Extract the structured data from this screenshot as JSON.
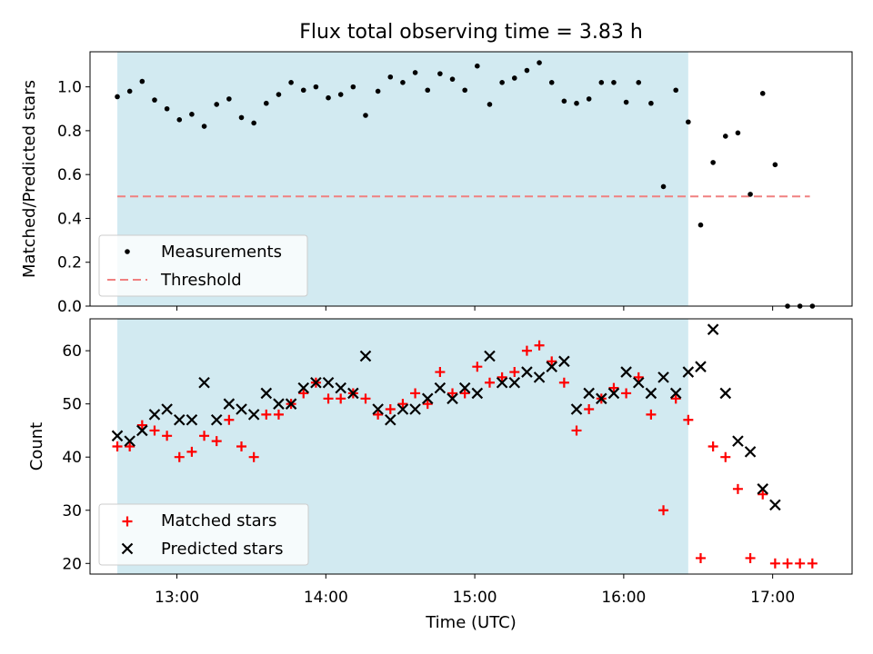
{
  "chart_data": [
    {
      "type": "scatter",
      "title": "Flux total observing time = 3.83 h",
      "xlabel": "",
      "ylabel": "Matched/Predicted stars",
      "xlim": [
        "12:25",
        "17:32"
      ],
      "ylim": [
        0.0,
        1.16
      ],
      "yticks": [
        "0.0",
        "0.2",
        "0.4",
        "0.6",
        "0.8",
        "1.0"
      ],
      "observing_window": [
        "12:36",
        "16:26"
      ],
      "legend_position": "lower-left",
      "legend": [
        "Measurements",
        "Threshold"
      ],
      "threshold": {
        "name": "Threshold",
        "y": 0.5,
        "x": [
          "12:36",
          "17:15"
        ],
        "color": "#f08080",
        "style": "dashed"
      },
      "series": [
        {
          "name": "Measurements",
          "color": "#000000",
          "marker": "dot",
          "x": [
            "12:36",
            "12:41",
            "12:46",
            "12:51",
            "12:56",
            "13:01",
            "13:06",
            "13:11",
            "13:16",
            "13:21",
            "13:26",
            "13:31",
            "13:36",
            "13:41",
            "13:46",
            "13:51",
            "13:56",
            "14:01",
            "14:06",
            "14:11",
            "14:16",
            "14:21",
            "14:26",
            "14:31",
            "14:36",
            "14:41",
            "14:46",
            "14:51",
            "14:56",
            "15:01",
            "15:06",
            "15:11",
            "15:16",
            "15:21",
            "15:26",
            "15:31",
            "15:36",
            "15:41",
            "15:46",
            "15:51",
            "15:56",
            "16:01",
            "16:06",
            "16:11",
            "16:16",
            "16:21",
            "16:26",
            "16:31",
            "16:36",
            "16:41",
            "16:46",
            "16:51",
            "16:56",
            "17:01",
            "17:06",
            "17:11",
            "17:16"
          ],
          "y": [
            0.955,
            0.98,
            1.025,
            0.94,
            0.9,
            0.85,
            0.875,
            0.82,
            0.92,
            0.945,
            0.86,
            0.835,
            0.925,
            0.965,
            1.02,
            0.985,
            1.0,
            0.95,
            0.965,
            1.0,
            0.87,
            0.98,
            1.045,
            1.02,
            1.065,
            0.985,
            1.06,
            1.035,
            0.985,
            1.095,
            0.92,
            1.02,
            1.04,
            1.075,
            1.11,
            1.02,
            0.935,
            0.925,
            0.945,
            1.02,
            1.02,
            0.93,
            1.02,
            0.925,
            0.545,
            0.985,
            0.84,
            0.37,
            0.655,
            0.775,
            0.79,
            0.51,
            0.97,
            0.645,
            0.0,
            0.0,
            0.0
          ]
        }
      ]
    },
    {
      "type": "scatter",
      "title": "",
      "xlabel": "Time (UTC)",
      "ylabel": "Count",
      "xlim": [
        "12:25",
        "17:32"
      ],
      "xticks": [
        "13:00",
        "14:00",
        "15:00",
        "16:00",
        "17:00"
      ],
      "ylim": [
        18,
        66
      ],
      "yticks": [
        "20",
        "30",
        "40",
        "50",
        "60"
      ],
      "observing_window": [
        "12:36",
        "16:26"
      ],
      "legend_position": "lower-left",
      "legend": [
        "Matched stars",
        "Predicted stars"
      ],
      "series": [
        {
          "name": "Matched stars",
          "color": "#ff0000",
          "marker": "plus",
          "x": [
            "12:36",
            "12:41",
            "12:46",
            "12:51",
            "12:56",
            "13:01",
            "13:06",
            "13:11",
            "13:16",
            "13:21",
            "13:26",
            "13:31",
            "13:36",
            "13:41",
            "13:46",
            "13:51",
            "13:56",
            "14:01",
            "14:06",
            "14:11",
            "14:16",
            "14:21",
            "14:26",
            "14:31",
            "14:36",
            "14:41",
            "14:46",
            "14:51",
            "14:56",
            "15:01",
            "15:06",
            "15:11",
            "15:16",
            "15:21",
            "15:26",
            "15:31",
            "15:36",
            "15:41",
            "15:46",
            "15:51",
            "15:56",
            "16:01",
            "16:06",
            "16:11",
            "16:16",
            "16:21",
            "16:26",
            "16:31",
            "16:36",
            "16:41",
            "16:46",
            "16:51",
            "16:56",
            "17:01",
            "17:06",
            "17:11",
            "17:16"
          ],
          "y": [
            42,
            42,
            46,
            45,
            44,
            40,
            41,
            44,
            43,
            47,
            42,
            40,
            48,
            48,
            50,
            52,
            54,
            51,
            51,
            52,
            51,
            48,
            49,
            50,
            52,
            50,
            56,
            52,
            52,
            57,
            54,
            55,
            56,
            60,
            61,
            58,
            54,
            45,
            49,
            51,
            53,
            52,
            55,
            48,
            30,
            51,
            47,
            21,
            42,
            40,
            34,
            21,
            33,
            20,
            20,
            20,
            20
          ]
        },
        {
          "name": "Predicted stars",
          "color": "#000000",
          "marker": "cross",
          "x": [
            "12:36",
            "12:41",
            "12:46",
            "12:51",
            "12:56",
            "13:01",
            "13:06",
            "13:11",
            "13:16",
            "13:21",
            "13:26",
            "13:31",
            "13:36",
            "13:41",
            "13:46",
            "13:51",
            "13:56",
            "14:01",
            "14:06",
            "14:11",
            "14:16",
            "14:21",
            "14:26",
            "14:31",
            "14:36",
            "14:41",
            "14:46",
            "14:51",
            "14:56",
            "15:01",
            "15:06",
            "15:11",
            "15:16",
            "15:21",
            "15:26",
            "15:31",
            "15:36",
            "15:41",
            "15:46",
            "15:51",
            "15:56",
            "16:01",
            "16:06",
            "16:11",
            "16:16",
            "16:21",
            "16:26",
            "16:31",
            "16:36",
            "16:41",
            "16:46",
            "16:51",
            "16:56",
            "17:01"
          ],
          "y": [
            44,
            43,
            45,
            48,
            49,
            47,
            47,
            54,
            47,
            50,
            49,
            48,
            52,
            50,
            50,
            53,
            54,
            54,
            53,
            52,
            59,
            49,
            47,
            49,
            49,
            51,
            53,
            51,
            53,
            52,
            59,
            54,
            54,
            56,
            55,
            57,
            58,
            49,
            52,
            51,
            52,
            56,
            54,
            52,
            55,
            52,
            56,
            57,
            64,
            52,
            43,
            41,
            34,
            31
          ]
        }
      ]
    }
  ]
}
